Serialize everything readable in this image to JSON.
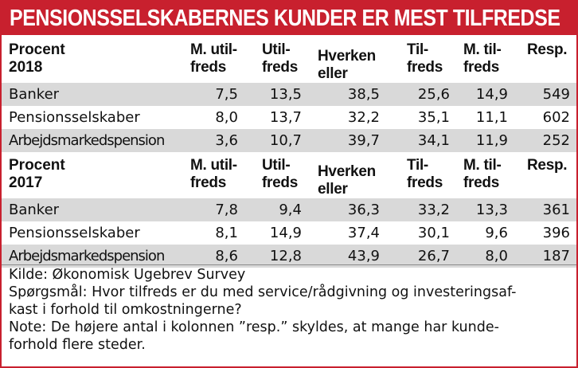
{
  "title": "PENSIONSSELSKABERNES KUNDER ER MEST TILFREDSE",
  "columns": [
    {
      "line1": "M. util-",
      "line2": "freds"
    },
    {
      "line1": "Util-",
      "line2": "freds"
    },
    {
      "line1": "Hverken",
      "line2": "eller"
    },
    {
      "line1": "Til-",
      "line2": "freds"
    },
    {
      "line1": "M. til-",
      "line2": "freds"
    },
    {
      "line1": "",
      "line2": "Resp."
    }
  ],
  "sections": [
    {
      "label_line1": "Procent",
      "label_line2": "2018",
      "rows": [
        {
          "name": "Banker",
          "values": [
            "7,5",
            "13,5",
            "38,5",
            "25,6",
            "14,9",
            "549"
          ]
        },
        {
          "name": "Pensionsselskaber",
          "values": [
            "8,0",
            "13,7",
            "32,2",
            "35,1",
            "11,1",
            "602"
          ]
        },
        {
          "name": "Arbejdsmarkedspension",
          "values": [
            "3,6",
            "10,7",
            "39,7",
            "34,1",
            "11,9",
            "252"
          ]
        }
      ]
    },
    {
      "label_line1": "Procent",
      "label_line2": "2017",
      "rows": [
        {
          "name": "Banker",
          "values": [
            "7,8",
            "9,4",
            "36,3",
            "33,2",
            "13,3",
            "361"
          ]
        },
        {
          "name": "Pensionsselskaber",
          "values": [
            "8,1",
            "14,9",
            "37,4",
            "30,1",
            "9,6",
            "396"
          ]
        },
        {
          "name": "Arbejdsmarkedspension",
          "values": [
            "8,6",
            "12,8",
            "43,9",
            "26,7",
            "8,0",
            "187"
          ]
        }
      ]
    }
  ],
  "notes": {
    "source": "Kilde: Økonomisk Ugebrev Survey",
    "question_line1": "Spørgsmål: Hvor tilfreds er du med service/rådgivning og investeringsaf-",
    "question_line2": "kast i forhold til omkostningerne?",
    "note_line1": "Note: De højere antal i kolonnen ”resp.” skyldes, at mange har kunde-",
    "note_line2": "forhold flere steder."
  },
  "colors": {
    "accent": "#c8202e",
    "row_shade": "#d9d9d9"
  }
}
